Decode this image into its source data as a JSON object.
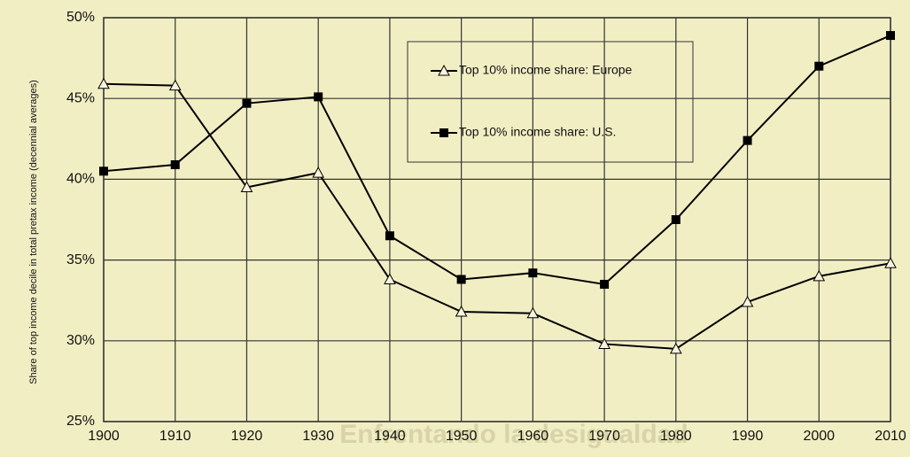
{
  "chart_data": {
    "type": "line",
    "x": [
      1900,
      1910,
      1920,
      1930,
      1940,
      1950,
      1960,
      1970,
      1980,
      1990,
      2000,
      2010
    ],
    "series": [
      {
        "name": "Top 10% income share: Europe",
        "color": "#000000",
        "marker": "triangle-open",
        "values": [
          45.9,
          45.8,
          39.5,
          40.4,
          33.8,
          31.8,
          31.7,
          29.8,
          29.5,
          32.4,
          34.0,
          34.8
        ]
      },
      {
        "name": "Top 10% income share: U.S.",
        "color": "#000000",
        "marker": "square-filled",
        "values": [
          40.5,
          40.9,
          44.7,
          45.1,
          36.5,
          33.8,
          34.2,
          33.5,
          37.5,
          42.4,
          47.0,
          48.9
        ]
      }
    ],
    "y_label": "Share of top income decile in total pretax income (decennial averages)",
    "watermark": "Enfrentando la desigualdad",
    "xlim": [
      1900,
      2010
    ],
    "xticks": [
      1900,
      1910,
      1920,
      1930,
      1940,
      1950,
      1960,
      1970,
      1980,
      1990,
      2000,
      2010
    ],
    "ylim": [
      25,
      50
    ],
    "yticks": [
      {
        "value": 25,
        "label": "25%"
      },
      {
        "value": 30,
        "label": "30%"
      },
      {
        "value": 35,
        "label": "35%"
      },
      {
        "value": 40,
        "label": "40%"
      },
      {
        "value": 45,
        "label": "45%"
      },
      {
        "value": 50,
        "label": "50%"
      }
    ],
    "grid": true,
    "legend": "top-center"
  }
}
